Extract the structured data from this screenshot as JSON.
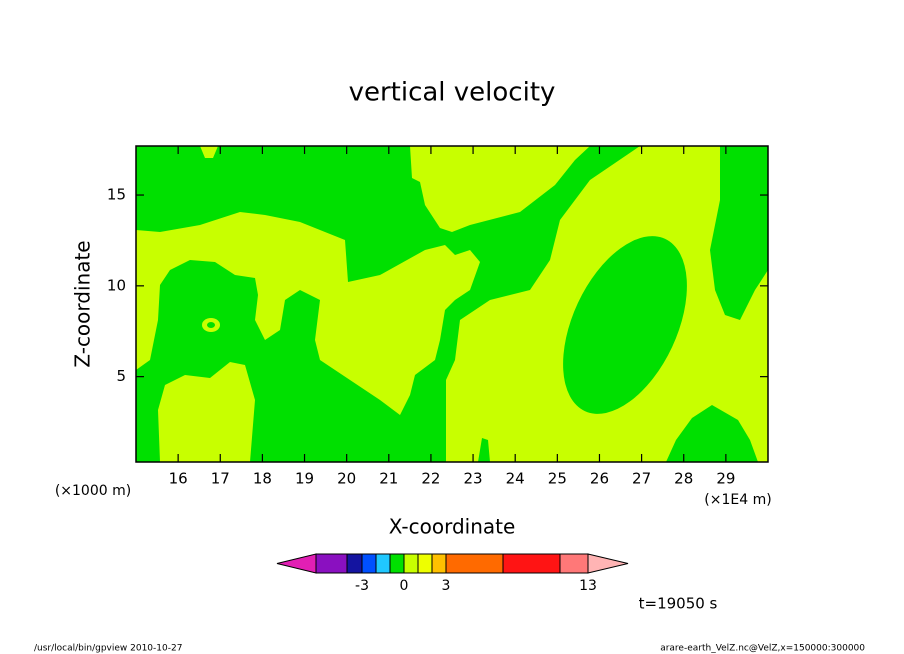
{
  "chart_data": {
    "type": "contour",
    "title": "vertical velocity",
    "x_label": "X-coordinate",
    "y_label": "Z-coordinate",
    "x_unit_left": "(×1000 m)",
    "x_unit_right": "(×1E4 m)",
    "xlim": [
      15,
      30
    ],
    "ylim": [
      0.3,
      17.7
    ],
    "xticks": [
      16,
      17,
      18,
      19,
      20,
      21,
      22,
      23,
      24,
      25,
      26,
      27,
      28,
      29
    ],
    "yticks": [
      5,
      10,
      15
    ],
    "colorbar": {
      "levels": [
        -7,
        -5,
        -3,
        -2,
        -1,
        0,
        1,
        2,
        3,
        5,
        10,
        13
      ],
      "colors": [
        "#e21fb4",
        "#8a10c0",
        "#1414a0",
        "#0050ff",
        "#20c8ff",
        "#00e000",
        "#c8ff00",
        "#eeff00",
        "#ffc000",
        "#ff6a00",
        "#ff1414",
        "#ff7878",
        "#ffb4b4"
      ],
      "ticks": [
        -3,
        0,
        3,
        13
      ]
    },
    "time_label": "t=19050 s",
    "footer_left": "/usr/local/bin/gpview  2010-10-27",
    "footer_right": "arare-earth_VelZ.nc@VelZ,x=150000:300000"
  }
}
